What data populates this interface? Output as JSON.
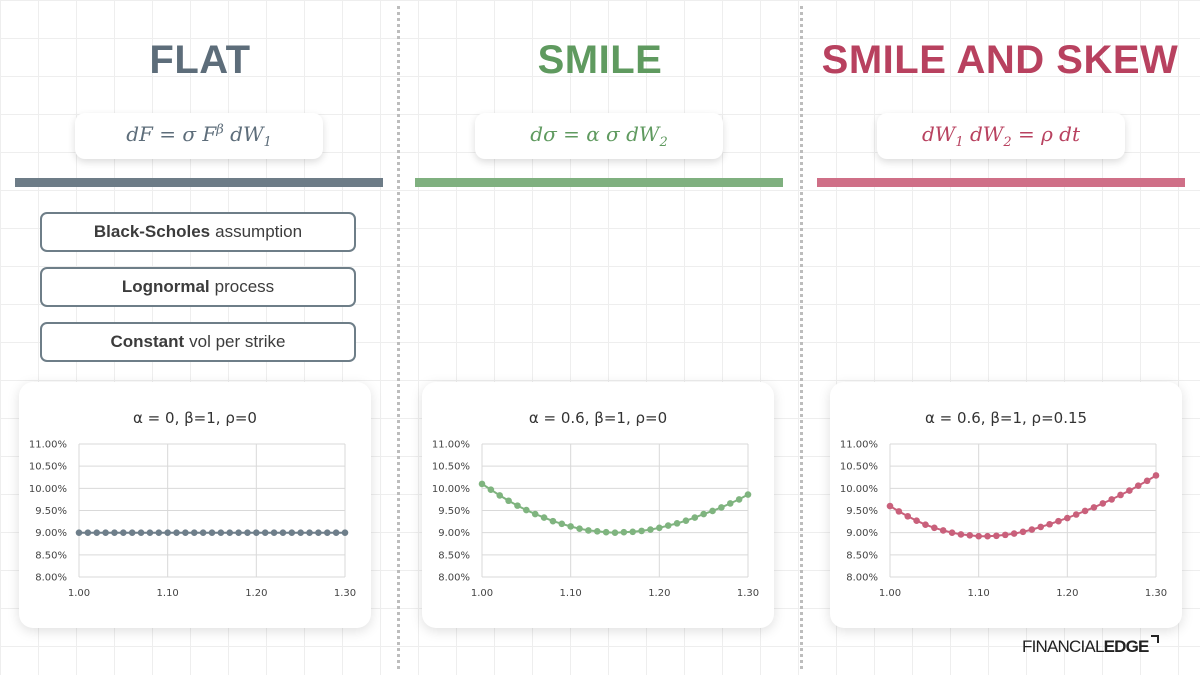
{
  "panels": [
    {
      "title": "FLAT",
      "color": "#5d6d7a",
      "formula_html": "dF&nbsp;=&nbsp;σ&nbsp;F<sup style=\"font-size:13px\">β</sup>&nbsp;dW<sub style=\"font-size:13px\">1</sub>"
    },
    {
      "title": "SMILE",
      "color": "#5f9a5f",
      "formula_html": "dσ&nbsp;=&nbsp;α&nbsp;σ&nbsp;dW<sub style=\"font-size:13px\">2</sub>"
    },
    {
      "title": "SMILE AND SKEW",
      "color": "#b8415f",
      "formula_html": "dW<sub style=\"font-size:13px\">1</sub>&nbsp;dW<sub style=\"font-size:13px\">2</sub>&nbsp;=&nbsp;ρ&nbsp;dt"
    }
  ],
  "pills": [
    {
      "bold": "Black-Scholes",
      "rest": "assumption"
    },
    {
      "bold": "Lognormal",
      "rest": "process"
    },
    {
      "bold": "Constant",
      "rest": "vol per strike"
    }
  ],
  "logo": {
    "part1": "FINANCIAL",
    "part2": "EDGE"
  },
  "chart_data": [
    {
      "type": "line",
      "title": "α = 0, β=1, ρ=0",
      "x": [
        1.0,
        1.01,
        1.02,
        1.03,
        1.04,
        1.05,
        1.06,
        1.07,
        1.08,
        1.09,
        1.1,
        1.11,
        1.12,
        1.13,
        1.14,
        1.15,
        1.16,
        1.17,
        1.18,
        1.19,
        1.2,
        1.21,
        1.22,
        1.23,
        1.24,
        1.25,
        1.26,
        1.27,
        1.28,
        1.29,
        1.3
      ],
      "y": [
        9.0,
        9.0,
        9.0,
        9.0,
        9.0,
        9.0,
        9.0,
        9.0,
        9.0,
        9.0,
        9.0,
        9.0,
        9.0,
        9.0,
        9.0,
        9.0,
        9.0,
        9.0,
        9.0,
        9.0,
        9.0,
        9.0,
        9.0,
        9.0,
        9.0,
        9.0,
        9.0,
        9.0,
        9.0,
        9.0,
        9.0
      ],
      "ylim": [
        8.0,
        11.0
      ],
      "yticks": [
        "8.00%",
        "8.50%",
        "9.00%",
        "9.50%",
        "10.00%",
        "10.50%",
        "11.00%"
      ],
      "xticks": [
        "1.00",
        "1.10",
        "1.20",
        "1.30"
      ],
      "grid": true,
      "color": "#6e7e8a"
    },
    {
      "type": "line",
      "title": "α = 0.6, β=1, ρ=0",
      "x": [
        1.0,
        1.01,
        1.02,
        1.03,
        1.04,
        1.05,
        1.06,
        1.07,
        1.08,
        1.09,
        1.1,
        1.11,
        1.12,
        1.13,
        1.14,
        1.15,
        1.16,
        1.17,
        1.18,
        1.19,
        1.2,
        1.21,
        1.22,
        1.23,
        1.24,
        1.25,
        1.26,
        1.27,
        1.28,
        1.29,
        1.3
      ],
      "y": [
        10.1,
        9.97,
        9.84,
        9.72,
        9.61,
        9.51,
        9.42,
        9.34,
        9.26,
        9.2,
        9.14,
        9.09,
        9.05,
        9.03,
        9.01,
        9.0,
        9.01,
        9.02,
        9.04,
        9.07,
        9.11,
        9.16,
        9.21,
        9.27,
        9.34,
        9.42,
        9.49,
        9.57,
        9.66,
        9.75,
        9.86
      ],
      "ylim": [
        8.0,
        11.0
      ],
      "yticks": [
        "8.00%",
        "8.50%",
        "9.00%",
        "9.50%",
        "10.00%",
        "10.50%",
        "11.00%"
      ],
      "xticks": [
        "1.00",
        "1.10",
        "1.20",
        "1.30"
      ],
      "grid": true,
      "color": "#7fb47f"
    },
    {
      "type": "line",
      "title": "α = 0.6, β=1, ρ=0.15",
      "x": [
        1.0,
        1.01,
        1.02,
        1.03,
        1.04,
        1.05,
        1.06,
        1.07,
        1.08,
        1.09,
        1.1,
        1.11,
        1.12,
        1.13,
        1.14,
        1.15,
        1.16,
        1.17,
        1.18,
        1.19,
        1.2,
        1.21,
        1.22,
        1.23,
        1.24,
        1.25,
        1.26,
        1.27,
        1.28,
        1.29,
        1.3
      ],
      "y": [
        9.6,
        9.48,
        9.37,
        9.27,
        9.18,
        9.11,
        9.05,
        9.0,
        8.96,
        8.94,
        8.92,
        8.92,
        8.93,
        8.95,
        8.98,
        9.02,
        9.07,
        9.13,
        9.19,
        9.26,
        9.33,
        9.41,
        9.49,
        9.57,
        9.66,
        9.75,
        9.85,
        9.95,
        10.06,
        10.17,
        10.29
      ],
      "ylim": [
        8.0,
        11.0
      ],
      "yticks": [
        "8.00%",
        "8.50%",
        "9.00%",
        "9.50%",
        "10.00%",
        "10.50%",
        "11.00%"
      ],
      "xticks": [
        "1.00",
        "1.10",
        "1.20",
        "1.30"
      ],
      "grid": true,
      "color": "#c9607b"
    }
  ]
}
